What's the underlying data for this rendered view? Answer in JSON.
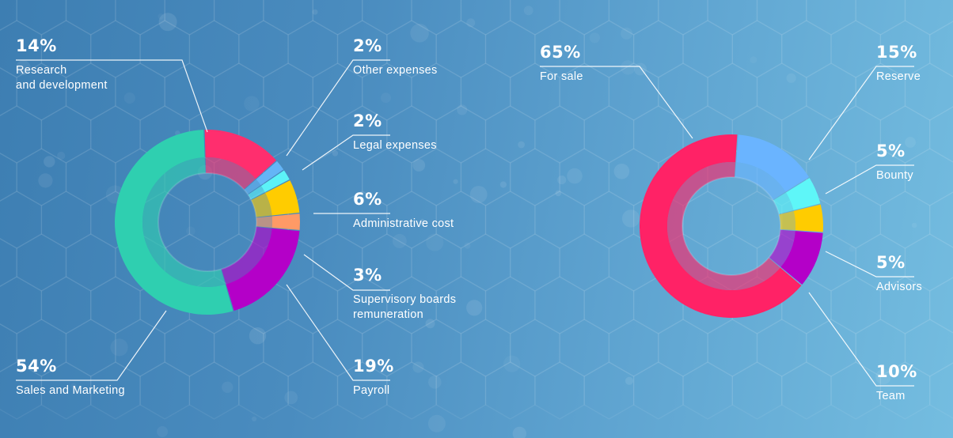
{
  "colors": {
    "research": "#ff2e6e",
    "other": "#64b5f6",
    "legal": "#5cf2f8",
    "admin": "#ffcc00",
    "supervisory": "#ff9a66",
    "payroll": "#b400c8",
    "sales": "#2fcfb0",
    "forsale": "#ff2266",
    "reserve": "#6ab4ff",
    "bounty": "#5ef6f8",
    "advisors": "#ffcc00",
    "team": "#b400c8"
  },
  "chart_data": [
    {
      "type": "pie",
      "variant": "donut",
      "slices": [
        {
          "key": "research",
          "label": "Research\nand development",
          "value": 14,
          "value_label": "14%"
        },
        {
          "key": "other",
          "label": "Other expenses",
          "value": 2,
          "value_label": "2%"
        },
        {
          "key": "legal",
          "label": "Legal expenses",
          "value": 2,
          "value_label": "2%"
        },
        {
          "key": "admin",
          "label": "Administrative cost",
          "value": 6,
          "value_label": "6%"
        },
        {
          "key": "supervisory",
          "label": "Supervisory boards\nremuneration",
          "value": 3,
          "value_label": "3%"
        },
        {
          "key": "payroll",
          "label": "Payroll",
          "value": 19,
          "value_label": "19%"
        },
        {
          "key": "sales",
          "label": "Sales and Marketing",
          "value": 54,
          "value_label": "54%"
        }
      ]
    },
    {
      "type": "pie",
      "variant": "donut",
      "slices": [
        {
          "key": "reserve",
          "label": "Reserve",
          "value": 15,
          "value_label": "15%"
        },
        {
          "key": "bounty",
          "label": "Bounty",
          "value": 5,
          "value_label": "5%"
        },
        {
          "key": "advisors",
          "label": "Advisors",
          "value": 5,
          "value_label": "5%"
        },
        {
          "key": "team",
          "label": "Team",
          "value": 10,
          "value_label": "10%"
        },
        {
          "key": "forsale",
          "label": "For sale",
          "value": 65,
          "value_label": "65%"
        }
      ]
    }
  ]
}
